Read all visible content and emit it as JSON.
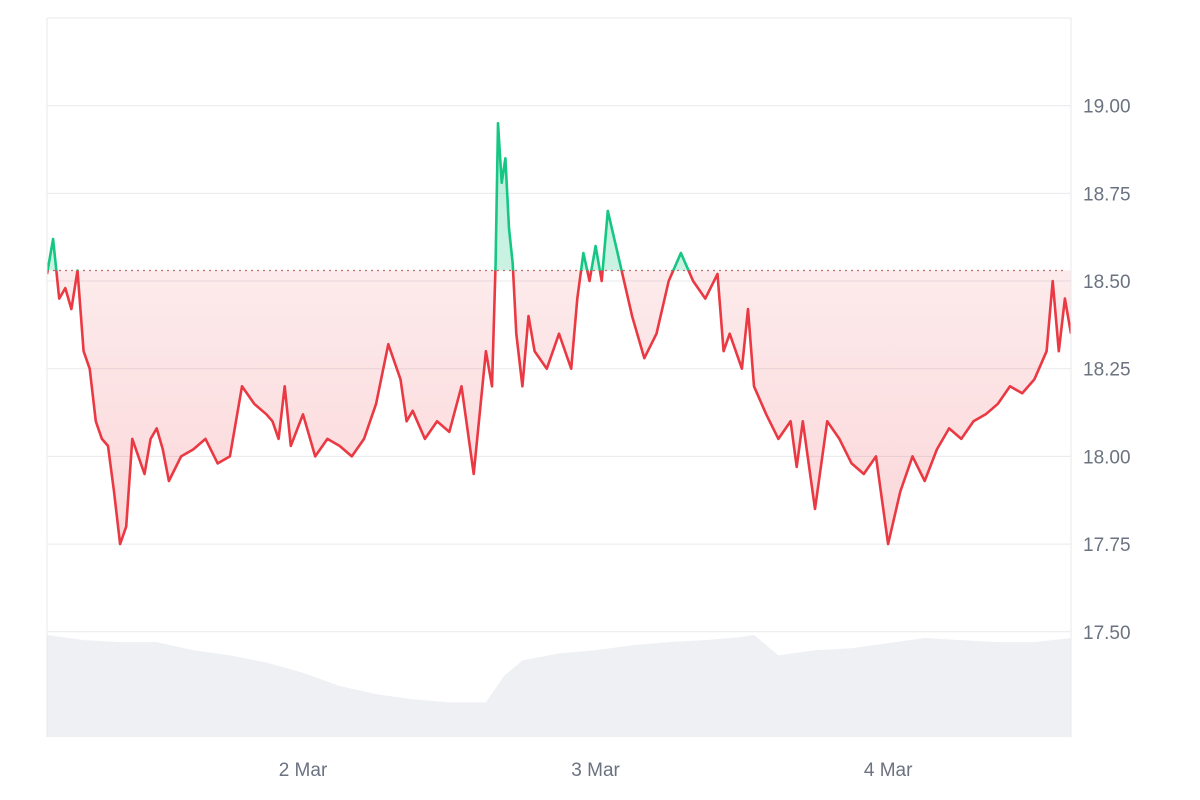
{
  "chart_data": {
    "type": "line",
    "baseline": 18.53,
    "ylim": [
      17.2,
      19.25
    ],
    "y_ticks": [
      {
        "value": 19.0,
        "label": "19.00"
      },
      {
        "value": 18.75,
        "label": "18.75"
      },
      {
        "value": 18.5,
        "label": "18.50"
      },
      {
        "value": 18.25,
        "label": "18.25"
      },
      {
        "value": 18.0,
        "label": "18.00"
      },
      {
        "value": 17.75,
        "label": "17.75"
      },
      {
        "value": 17.5,
        "label": "17.50"
      }
    ],
    "x_ticks": [
      {
        "value": 24.0,
        "label": "2 Mar"
      },
      {
        "value": 48.0,
        "label": "3 Mar"
      },
      {
        "value": 72.0,
        "label": "4 Mar"
      }
    ],
    "x_range": [
      3.0,
      87.0
    ],
    "x_unit": "hours from 1 Mar 00:00",
    "series": [
      {
        "x": [
          3.0,
          3.5,
          4.0,
          4.5,
          5.0,
          5.5,
          6.0,
          6.5,
          7.0,
          7.5,
          8.0,
          8.5,
          9.0,
          9.5,
          10.0,
          10.5,
          11.0,
          11.5,
          12.0,
          12.5,
          13.0,
          14.0,
          15.0,
          16.0,
          17.0,
          18.0,
          19.0,
          20.0,
          21.0,
          21.5,
          22.0,
          22.5,
          23.0,
          24.0,
          25.0,
          26.0,
          27.0,
          28.0,
          29.0,
          30.0,
          31.0,
          32.0,
          32.5,
          33.0,
          34.0,
          35.0,
          36.0,
          37.0,
          38.0,
          39.0,
          39.5,
          39.8,
          40.0,
          40.3,
          40.6,
          40.9,
          41.2,
          41.5,
          42.0,
          42.5,
          43.0,
          44.0,
          45.0,
          46.0,
          46.5,
          47.0,
          47.5,
          48.0,
          48.5,
          49.0,
          50.0,
          51.0,
          52.0,
          53.0,
          54.0,
          55.0,
          56.0,
          57.0,
          58.0,
          58.5,
          59.0,
          60.0,
          60.5,
          61.0,
          62.0,
          63.0,
          64.0,
          64.5,
          65.0,
          66.0,
          67.0,
          68.0,
          69.0,
          70.0,
          71.0,
          72.0,
          73.0,
          74.0,
          75.0,
          76.0,
          77.0,
          78.0,
          79.0,
          80.0,
          81.0,
          82.0,
          83.0,
          84.0,
          85.0,
          85.5,
          86.0,
          86.5,
          87.0
        ],
        "values": [
          18.52,
          18.62,
          18.45,
          18.48,
          18.42,
          18.53,
          18.3,
          18.25,
          18.1,
          18.05,
          18.03,
          17.9,
          17.75,
          17.8,
          18.05,
          18.0,
          17.95,
          18.05,
          18.08,
          18.02,
          17.93,
          18.0,
          18.02,
          18.05,
          17.98,
          18.0,
          18.2,
          18.15,
          18.12,
          18.1,
          18.05,
          18.2,
          18.03,
          18.12,
          18.0,
          18.05,
          18.03,
          18.0,
          18.05,
          18.15,
          18.32,
          18.22,
          18.1,
          18.13,
          18.05,
          18.1,
          18.07,
          18.2,
          17.95,
          18.3,
          18.2,
          18.55,
          18.95,
          18.78,
          18.85,
          18.65,
          18.55,
          18.35,
          18.2,
          18.4,
          18.3,
          18.25,
          18.35,
          18.25,
          18.45,
          18.58,
          18.5,
          18.6,
          18.5,
          18.7,
          18.55,
          18.4,
          18.28,
          18.35,
          18.5,
          18.58,
          18.5,
          18.45,
          18.52,
          18.3,
          18.35,
          18.25,
          18.42,
          18.2,
          18.12,
          18.05,
          18.1,
          17.97,
          18.1,
          17.85,
          18.1,
          18.05,
          17.98,
          17.95,
          18.0,
          17.75,
          17.9,
          18.0,
          17.93,
          18.02,
          18.08,
          18.05,
          18.1,
          18.12,
          18.15,
          18.2,
          18.18,
          18.22,
          18.3,
          18.5,
          18.3,
          18.45,
          18.35
        ],
        "color_above": "#16c784",
        "color_below": "#ea3943"
      }
    ],
    "volume": {
      "x": [
        3,
        6,
        9,
        12,
        15,
        18,
        21,
        24,
        27,
        30,
        33,
        36,
        39,
        40.5,
        42,
        45,
        48,
        51,
        54,
        57,
        60,
        61,
        62,
        63,
        66,
        69,
        72,
        75,
        78,
        81,
        84,
        87
      ],
      "values": [
        1.0,
        0.95,
        0.93,
        0.93,
        0.85,
        0.8,
        0.73,
        0.63,
        0.5,
        0.42,
        0.37,
        0.34,
        0.34,
        0.6,
        0.75,
        0.82,
        0.85,
        0.9,
        0.93,
        0.95,
        0.98,
        1.0,
        0.9,
        0.8,
        0.85,
        0.87,
        0.92,
        0.97,
        0.95,
        0.93,
        0.93,
        0.97
      ],
      "color": "#eef0f3"
    },
    "colors": {
      "grid": "#e8eaee",
      "baseline_dots": "#c06c6c",
      "red_fill": "#ea3943",
      "green_fill": "#16c784",
      "axis_text": "#6b7280"
    }
  }
}
